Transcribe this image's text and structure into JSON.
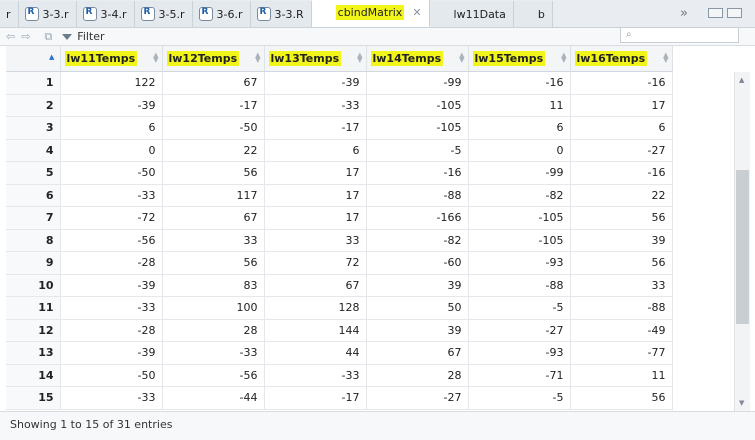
{
  "tabs": [
    {
      "label": "r",
      "type": "partial",
      "active": false
    },
    {
      "label": "3-3.r",
      "type": "r",
      "active": false
    },
    {
      "label": "3-4.r",
      "type": "r",
      "active": false
    },
    {
      "label": "3-5.r",
      "type": "r",
      "active": false
    },
    {
      "label": "3-6.r",
      "type": "r",
      "active": false
    },
    {
      "label": "3-3.R",
      "type": "r",
      "active": false
    },
    {
      "label": "cbindMatrix",
      "type": "grid",
      "active": true
    },
    {
      "label": "lw11Data",
      "type": "grid",
      "active": false
    },
    {
      "label": "b",
      "type": "grid",
      "active": false
    }
  ],
  "tab_overflow": "»",
  "toolbar": {
    "filter_label": "Filter",
    "search_placeholder": ""
  },
  "table": {
    "columns": [
      "lw11Temps",
      "lw12Temps",
      "lw13Temps",
      "lw14Temps",
      "lw15Temps",
      "lw16Temps"
    ],
    "rows": [
      [
        1,
        122,
        67,
        -39,
        -99,
        -16,
        -16
      ],
      [
        2,
        -39,
        -17,
        -33,
        -105,
        11,
        17
      ],
      [
        3,
        6,
        -50,
        -17,
        -105,
        6,
        6
      ],
      [
        4,
        0,
        22,
        6,
        -5,
        0,
        -27
      ],
      [
        5,
        -50,
        56,
        17,
        -16,
        -99,
        -16
      ],
      [
        6,
        -33,
        117,
        17,
        -88,
        -82,
        22
      ],
      [
        7,
        -72,
        67,
        17,
        -166,
        -105,
        56
      ],
      [
        8,
        -56,
        33,
        33,
        -82,
        -105,
        39
      ],
      [
        9,
        -28,
        56,
        72,
        -60,
        -93,
        56
      ],
      [
        10,
        -39,
        83,
        67,
        39,
        -88,
        33
      ],
      [
        11,
        -33,
        100,
        128,
        50,
        -5,
        -88
      ],
      [
        12,
        -28,
        28,
        144,
        39,
        -27,
        -49
      ],
      [
        13,
        -39,
        -33,
        44,
        67,
        -93,
        -77
      ],
      [
        14,
        -50,
        -56,
        -33,
        28,
        -71,
        11
      ],
      [
        15,
        -33,
        -44,
        -17,
        -27,
        -5,
        56
      ]
    ]
  },
  "footer": {
    "status": "Showing 1 to 15 of 31 entries"
  },
  "colors": {
    "highlight": "#f2f51a",
    "tab_bg": "#e4e9ee",
    "header_bg": "#f3f5f7"
  }
}
